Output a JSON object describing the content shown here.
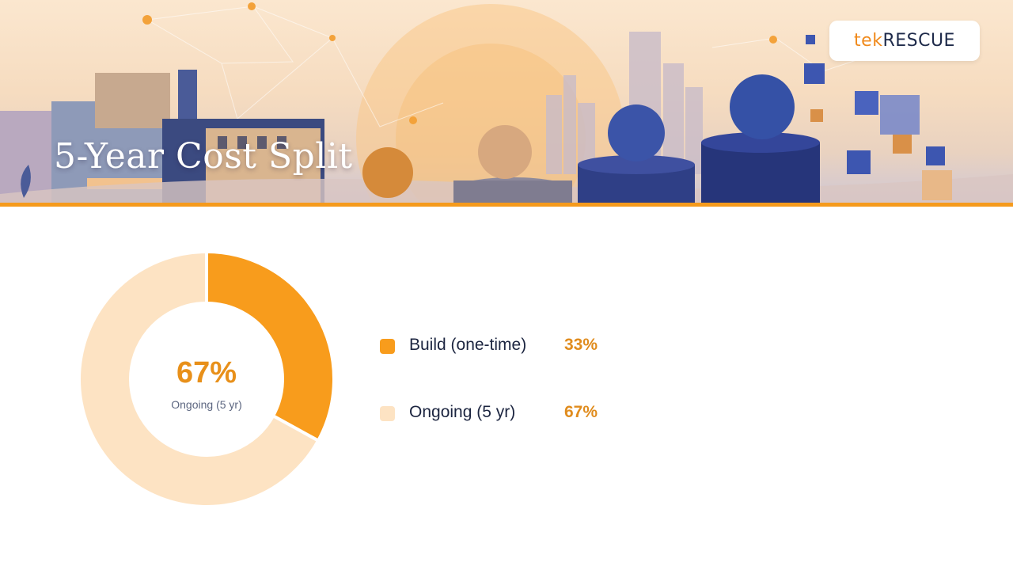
{
  "header": {
    "title": "5-Year Cost Split",
    "logo": {
      "part1": "tek",
      "part2": "RESCUE"
    }
  },
  "colors": {
    "accent": "#f59a1c",
    "build": "#f89c1c",
    "ongoing": "#fde3c3",
    "value_text": "#e08c1e",
    "label_text": "#1c2540"
  },
  "chart_data": {
    "type": "pie",
    "style": "donut",
    "categories": [
      "Build (one-time)",
      "Ongoing (5 yr)"
    ],
    "values": [
      33,
      67
    ],
    "labels": [
      "33%",
      "67%"
    ],
    "center": {
      "value": "67%",
      "label": "Ongoing (5 yr)"
    },
    "legend_position": "right"
  }
}
